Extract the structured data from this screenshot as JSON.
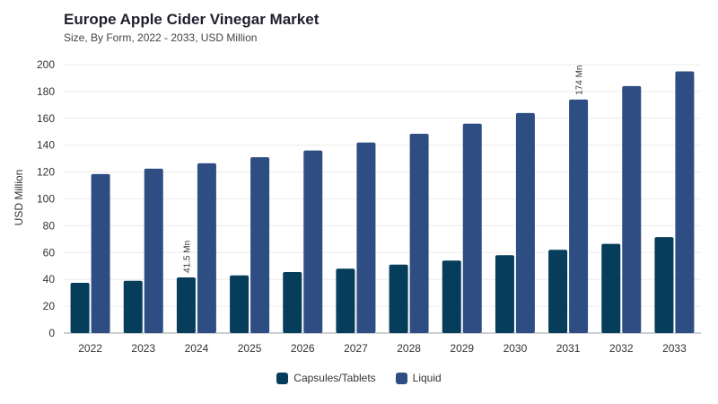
{
  "header": {
    "title": "Europe Apple Cider Vinegar Market",
    "subtitle": "Size, By Form, 2022 - 2033, USD Million"
  },
  "chart_data": {
    "type": "bar",
    "title": "Europe Apple Cider Vinegar Market",
    "subtitle": "Size, By Form, 2022 - 2033, USD Million",
    "xlabel": "",
    "ylabel": "USD Million",
    "ylim": [
      0,
      200
    ],
    "yticks": [
      0,
      20,
      40,
      60,
      80,
      100,
      120,
      140,
      160,
      180,
      200
    ],
    "categories": [
      "2022",
      "2023",
      "2024",
      "2025",
      "2026",
      "2027",
      "2028",
      "2029",
      "2030",
      "2031",
      "2032",
      "2033"
    ],
    "series": [
      {
        "name": "Capsules/Tablets",
        "color": "#053d5b",
        "values": [
          37.5,
          39,
          41.5,
          43,
          45.5,
          48,
          51,
          54,
          58,
          62,
          66.5,
          71.5
        ]
      },
      {
        "name": "Liquid",
        "color": "#2e4e83",
        "values": [
          118.5,
          122.5,
          126.5,
          131,
          136,
          142,
          148.5,
          156,
          164,
          174,
          184,
          195
        ]
      }
    ],
    "annotations": [
      {
        "series": 0,
        "category": "2024",
        "text": "41.5 Mn"
      },
      {
        "series": 1,
        "category": "2031",
        "text": "174 Mn"
      }
    ],
    "grid": true,
    "legend": "bottom-center"
  }
}
